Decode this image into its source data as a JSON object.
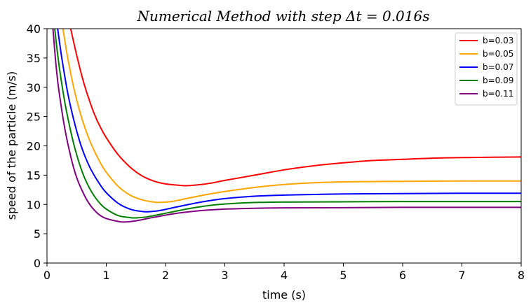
{
  "chart_data": {
    "type": "line",
    "title": "Numerical   Method   with   step   Δt = 0.016s",
    "xlabel": "time (s)",
    "ylabel": "speed of the particle (m/s)",
    "xlim": [
      0,
      8
    ],
    "ylim": [
      0,
      40
    ],
    "xticks": [
      "0",
      "1",
      "2",
      "3",
      "4",
      "5",
      "6",
      "7",
      "8"
    ],
    "yticks": [
      "0",
      "5",
      "10",
      "15",
      "20",
      "25",
      "30",
      "35",
      "40"
    ],
    "grid": false,
    "legend_position": "top-right",
    "series": [
      {
        "name": "b=0.03",
        "color": "#ff0000",
        "x": [
          0.4,
          0.5,
          0.6,
          0.7,
          0.8,
          0.9,
          1.0,
          1.2,
          1.4,
          1.6,
          1.8,
          2.0,
          2.2,
          2.35,
          2.6,
          2.8,
          3.0,
          3.5,
          4.0,
          4.5,
          5.0,
          5.5,
          6.0,
          6.5,
          7.0,
          7.5,
          8.0
        ],
        "y": [
          40.0,
          35.5,
          31.5,
          28.2,
          25.4,
          23.2,
          21.4,
          18.5,
          16.4,
          14.9,
          14.0,
          13.5,
          13.3,
          13.2,
          13.4,
          13.7,
          14.1,
          15.0,
          15.9,
          16.6,
          17.1,
          17.5,
          17.7,
          17.9,
          18.0,
          18.05,
          18.1
        ]
      },
      {
        "name": "b=0.05",
        "color": "#ffa500",
        "x": [
          0.27,
          0.35,
          0.45,
          0.55,
          0.65,
          0.75,
          0.9,
          1.0,
          1.2,
          1.4,
          1.6,
          1.8,
          1.9,
          2.1,
          2.4,
          2.7,
          3.0,
          3.5,
          4.0,
          4.5,
          5.0,
          5.5,
          6.0,
          7.0,
          8.0
        ],
        "y": [
          40.0,
          35.0,
          30.0,
          26.0,
          22.8,
          20.2,
          17.1,
          15.5,
          13.1,
          11.6,
          10.8,
          10.4,
          10.35,
          10.5,
          11.1,
          11.7,
          12.2,
          12.9,
          13.4,
          13.7,
          13.85,
          13.9,
          13.95,
          14.0,
          14.0
        ]
      },
      {
        "name": "b=0.07",
        "color": "#0000ff",
        "x": [
          0.18,
          0.25,
          0.35,
          0.45,
          0.55,
          0.65,
          0.75,
          0.9,
          1.0,
          1.2,
          1.4,
          1.6,
          1.7,
          1.9,
          2.2,
          2.6,
          3.0,
          3.5,
          4.0,
          4.5,
          5.0,
          6.0,
          7.0,
          8.0
        ],
        "y": [
          40.0,
          35.0,
          29.0,
          24.5,
          20.8,
          18.0,
          15.8,
          13.3,
          12.0,
          10.2,
          9.2,
          8.8,
          8.75,
          8.95,
          9.6,
          10.4,
          11.0,
          11.4,
          11.6,
          11.7,
          11.8,
          11.85,
          11.9,
          11.9
        ]
      },
      {
        "name": "b=0.09",
        "color": "#008000",
        "x": [
          0.13,
          0.2,
          0.3,
          0.4,
          0.5,
          0.6,
          0.7,
          0.8,
          0.9,
          1.0,
          1.2,
          1.4,
          1.5,
          1.7,
          2.0,
          2.4,
          2.8,
          3.2,
          3.6,
          4.0,
          5.0,
          6.0,
          7.0,
          8.0
        ],
        "y": [
          40.0,
          34.0,
          27.5,
          22.5,
          18.5,
          15.4,
          13.1,
          11.4,
          10.1,
          9.2,
          8.1,
          7.75,
          7.7,
          7.9,
          8.5,
          9.3,
          9.9,
          10.2,
          10.35,
          10.4,
          10.45,
          10.5,
          10.5,
          10.5
        ]
      },
      {
        "name": "b=0.11",
        "color": "#800080",
        "x": [
          0.1,
          0.15,
          0.2,
          0.3,
          0.4,
          0.5,
          0.6,
          0.7,
          0.8,
          0.9,
          1.0,
          1.2,
          1.3,
          1.5,
          1.8,
          2.2,
          2.6,
          3.0,
          3.5,
          4.0,
          5.0,
          6.0,
          7.0,
          8.0
        ],
        "y": [
          40.0,
          34.0,
          29.5,
          23.0,
          18.2,
          14.6,
          12.2,
          10.3,
          9.0,
          8.1,
          7.6,
          7.1,
          7.0,
          7.2,
          7.8,
          8.5,
          8.95,
          9.2,
          9.35,
          9.42,
          9.45,
          9.5,
          9.5,
          9.5
        ]
      }
    ]
  }
}
